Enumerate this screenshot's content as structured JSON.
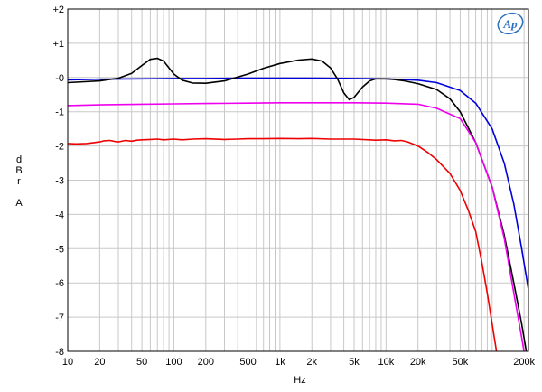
{
  "chart_data": {
    "type": "line",
    "xlabel": "Hz",
    "ylabel_chars": [
      "d",
      "B",
      "r",
      "",
      "A"
    ],
    "x_scale": "log",
    "xlim": [
      10,
      220000
    ],
    "ylim": [
      -8,
      2
    ],
    "grid": true,
    "x_ticks": [
      {
        "value": 10,
        "label": "10"
      },
      {
        "value": 20,
        "label": "20"
      },
      {
        "value": 50,
        "label": "50"
      },
      {
        "value": 100,
        "label": "100"
      },
      {
        "value": 200,
        "label": "200"
      },
      {
        "value": 500,
        "label": "500"
      },
      {
        "value": 1000,
        "label": "1k"
      },
      {
        "value": 2000,
        "label": "2k"
      },
      {
        "value": 5000,
        "label": "5k"
      },
      {
        "value": 10000,
        "label": "10k"
      },
      {
        "value": 20000,
        "label": "20k"
      },
      {
        "value": 50000,
        "label": "50k"
      },
      {
        "value": 200000,
        "label": "200k"
      }
    ],
    "y_ticks": [
      {
        "value": 2,
        "label": "+2"
      },
      {
        "value": 1,
        "label": "+1"
      },
      {
        "value": 0,
        "label": "-0"
      },
      {
        "value": -1,
        "label": "-1"
      },
      {
        "value": -2,
        "label": "-2"
      },
      {
        "value": -3,
        "label": "-3"
      },
      {
        "value": -4,
        "label": "-4"
      },
      {
        "value": -5,
        "label": "-5"
      },
      {
        "value": -6,
        "label": "-6"
      },
      {
        "value": -7,
        "label": "-7"
      },
      {
        "value": -8,
        "label": "-8"
      }
    ],
    "series": [
      {
        "color": "#0000dd",
        "points": [
          [
            10,
            -0.07
          ],
          [
            20,
            -0.05
          ],
          [
            50,
            -0.04
          ],
          [
            100,
            -0.03
          ],
          [
            200,
            -0.03
          ],
          [
            500,
            -0.02
          ],
          [
            1000,
            -0.02
          ],
          [
            2000,
            -0.02
          ],
          [
            5000,
            -0.03
          ],
          [
            10000,
            -0.04
          ],
          [
            20000,
            -0.08
          ],
          [
            30000,
            -0.15
          ],
          [
            50000,
            -0.38
          ],
          [
            70000,
            -0.75
          ],
          [
            100000,
            -1.5
          ],
          [
            130000,
            -2.5
          ],
          [
            160000,
            -3.7
          ],
          [
            190000,
            -5.0
          ],
          [
            220000,
            -6.2
          ]
        ]
      },
      {
        "color": "#000000",
        "points": [
          [
            10,
            -0.15
          ],
          [
            20,
            -0.1
          ],
          [
            30,
            -0.02
          ],
          [
            40,
            0.12
          ],
          [
            50,
            0.35
          ],
          [
            60,
            0.53
          ],
          [
            70,
            0.56
          ],
          [
            80,
            0.48
          ],
          [
            90,
            0.28
          ],
          [
            100,
            0.1
          ],
          [
            120,
            -0.08
          ],
          [
            150,
            -0.16
          ],
          [
            200,
            -0.17
          ],
          [
            300,
            -0.1
          ],
          [
            500,
            0.1
          ],
          [
            700,
            0.27
          ],
          [
            1000,
            0.41
          ],
          [
            1500,
            0.51
          ],
          [
            2000,
            0.54
          ],
          [
            2500,
            0.48
          ],
          [
            3000,
            0.28
          ],
          [
            3500,
            -0.05
          ],
          [
            4000,
            -0.45
          ],
          [
            4500,
            -0.65
          ],
          [
            5000,
            -0.58
          ],
          [
            6000,
            -0.28
          ],
          [
            7000,
            -0.1
          ],
          [
            8000,
            -0.04
          ],
          [
            10000,
            -0.04
          ],
          [
            12000,
            -0.06
          ],
          [
            15000,
            -0.1
          ],
          [
            20000,
            -0.18
          ],
          [
            30000,
            -0.35
          ],
          [
            40000,
            -0.62
          ],
          [
            50000,
            -1.0
          ],
          [
            70000,
            -1.9
          ],
          [
            100000,
            -3.2
          ],
          [
            130000,
            -4.6
          ],
          [
            160000,
            -6.0
          ],
          [
            190000,
            -7.2
          ],
          [
            210000,
            -8.0
          ]
        ]
      },
      {
        "color": "#ee00ee",
        "points": [
          [
            10,
            -0.82
          ],
          [
            20,
            -0.8
          ],
          [
            50,
            -0.78
          ],
          [
            100,
            -0.77
          ],
          [
            200,
            -0.76
          ],
          [
            500,
            -0.75
          ],
          [
            1000,
            -0.74
          ],
          [
            2000,
            -0.74
          ],
          [
            5000,
            -0.74
          ],
          [
            10000,
            -0.75
          ],
          [
            20000,
            -0.78
          ],
          [
            30000,
            -0.9
          ],
          [
            50000,
            -1.2
          ],
          [
            70000,
            -1.9
          ],
          [
            100000,
            -3.2
          ],
          [
            130000,
            -4.7
          ],
          [
            160000,
            -6.3
          ],
          [
            190000,
            -7.6
          ],
          [
            200000,
            -8.0
          ]
        ]
      },
      {
        "color": "#ee0000",
        "points": [
          [
            10,
            -1.93
          ],
          [
            12,
            -1.94
          ],
          [
            15,
            -1.93
          ],
          [
            18,
            -1.9
          ],
          [
            20,
            -1.88
          ],
          [
            22,
            -1.85
          ],
          [
            25,
            -1.84
          ],
          [
            28,
            -1.87
          ],
          [
            30,
            -1.88
          ],
          [
            35,
            -1.84
          ],
          [
            40,
            -1.86
          ],
          [
            45,
            -1.83
          ],
          [
            50,
            -1.82
          ],
          [
            60,
            -1.81
          ],
          [
            70,
            -1.8
          ],
          [
            80,
            -1.82
          ],
          [
            100,
            -1.8
          ],
          [
            120,
            -1.82
          ],
          [
            150,
            -1.8
          ],
          [
            200,
            -1.79
          ],
          [
            300,
            -1.81
          ],
          [
            400,
            -1.8
          ],
          [
            500,
            -1.79
          ],
          [
            700,
            -1.79
          ],
          [
            1000,
            -1.78
          ],
          [
            1500,
            -1.79
          ],
          [
            2000,
            -1.78
          ],
          [
            3000,
            -1.8
          ],
          [
            5000,
            -1.8
          ],
          [
            8000,
            -1.83
          ],
          [
            10000,
            -1.82
          ],
          [
            12000,
            -1.85
          ],
          [
            14000,
            -1.84
          ],
          [
            16000,
            -1.88
          ],
          [
            20000,
            -2.0
          ],
          [
            25000,
            -2.2
          ],
          [
            30000,
            -2.4
          ],
          [
            40000,
            -2.8
          ],
          [
            50000,
            -3.3
          ],
          [
            60000,
            -3.9
          ],
          [
            70000,
            -4.5
          ],
          [
            80000,
            -5.4
          ],
          [
            90000,
            -6.3
          ],
          [
            100000,
            -7.2
          ],
          [
            110000,
            -8.0
          ]
        ]
      }
    ]
  },
  "logo": {
    "text": "Ap",
    "color": "#2a6fc0"
  }
}
